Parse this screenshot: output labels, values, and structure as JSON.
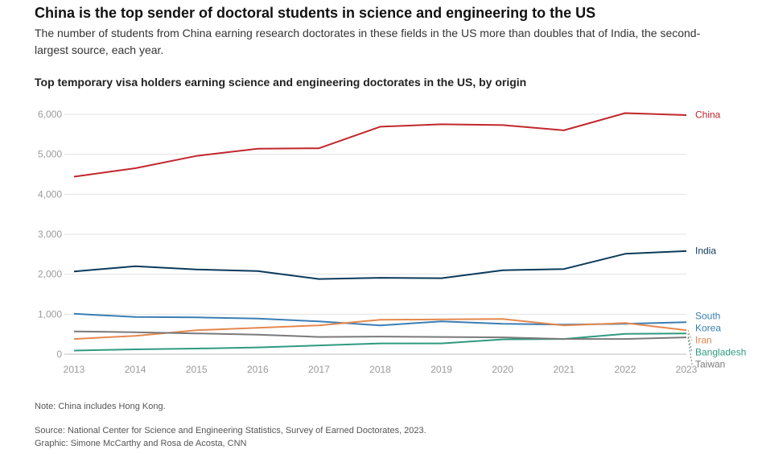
{
  "headline": "China is the top sender of doctoral students in science and engineering to the US",
  "dek": "The number of students from China earning research doctorates in these fields in the US more than doubles that of India, the second-largest source, each year.",
  "note": "Note: China includes Hong Kong.",
  "source": "Source: National Center for Science and Engineering Statistics, Survey of Earned Doctorates, 2023.",
  "credit": "Graphic: Simone McCarthy and Rosa de Acosta, CNN",
  "chart_data": {
    "type": "line",
    "title": "Top temporary visa holders earning science and engineering doctorates in the US, by origin",
    "xlabel": "",
    "ylabel": "",
    "x": [
      2013,
      2014,
      2015,
      2016,
      2017,
      2018,
      2019,
      2020,
      2021,
      2022,
      2023
    ],
    "ylim": [
      0,
      6000
    ],
    "yticks": [
      0,
      1000,
      2000,
      3000,
      4000,
      5000,
      6000
    ],
    "ytick_labels": [
      "0",
      "1,000",
      "2,000",
      "3,000",
      "4,000",
      "5,000",
      "6,000"
    ],
    "grid": true,
    "series": [
      {
        "name": "China",
        "label_lines": [
          "China"
        ],
        "color": "#c1272d",
        "values": [
          4440,
          4650,
          4960,
          5140,
          5150,
          5690,
          5750,
          5730,
          5600,
          6030,
          5980
        ]
      },
      {
        "name": "India",
        "label_lines": [
          "India"
        ],
        "color": "#0b3a5c",
        "values": [
          2070,
          2200,
          2120,
          2080,
          1880,
          1910,
          1900,
          2100,
          2130,
          2510,
          2580
        ]
      },
      {
        "name": "South Korea",
        "label_lines": [
          "South",
          "Korea"
        ],
        "color": "#3a7eb4",
        "values": [
          1010,
          930,
          920,
          890,
          820,
          720,
          820,
          760,
          740,
          760,
          800
        ]
      },
      {
        "name": "Iran",
        "label_lines": [
          "Iran"
        ],
        "color": "#e4884e",
        "values": [
          380,
          460,
          600,
          660,
          720,
          860,
          870,
          880,
          720,
          780,
          600
        ]
      },
      {
        "name": "Bangladesh",
        "label_lines": [
          "Bangladesh"
        ],
        "color": "#2f9a7f",
        "values": [
          90,
          120,
          140,
          170,
          220,
          270,
          270,
          370,
          380,
          510,
          520
        ]
      },
      {
        "name": "Taiwan",
        "label_lines": [
          "Taiwan"
        ],
        "color": "#7a7a7a",
        "values": [
          570,
          550,
          520,
          490,
          430,
          440,
          430,
          420,
          380,
          380,
          420
        ]
      }
    ]
  }
}
